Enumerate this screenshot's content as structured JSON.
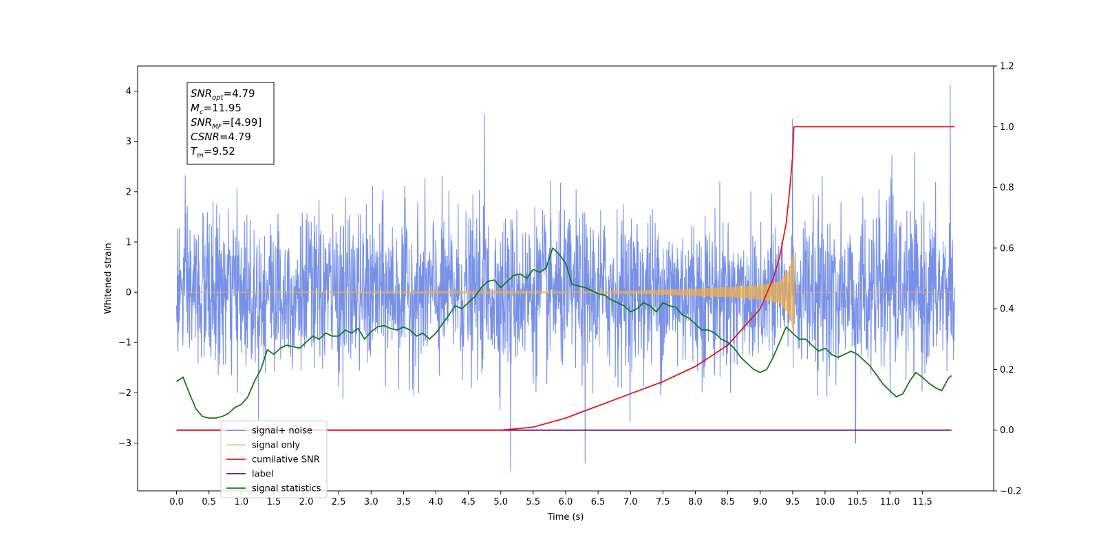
{
  "chart_data": {
    "type": "line",
    "xlabel": "Time (s)",
    "ylabel_left": "Whitened strain",
    "ylabel_right": "",
    "xlim": [
      -0.6,
      12.6
    ],
    "ylim_left": [
      -3.95,
      4.5
    ],
    "ylim_right": [
      -0.2,
      1.2
    ],
    "x_ticks": [
      0.0,
      0.5,
      1.0,
      1.5,
      2.0,
      2.5,
      3.0,
      3.5,
      4.0,
      4.5,
      5.0,
      5.5,
      6.0,
      6.5,
      7.0,
      7.5,
      8.0,
      8.5,
      9.0,
      9.5,
      10.0,
      10.5,
      11.0,
      11.5
    ],
    "x_tick_labels": [
      "0.0",
      "0.5",
      "1.0",
      "1.5",
      "2.0",
      "2.5",
      "3.0",
      "3.5",
      "4.0",
      "4.5",
      "5.0",
      "5.5",
      "6.0",
      "6.5",
      "7.0",
      "7.5",
      "8.0",
      "8.5",
      "9.0",
      "9.5",
      "10.0",
      "10.5",
      "11.0",
      "11.5"
    ],
    "y_ticks_left": [
      -3,
      -2,
      -1,
      0,
      1,
      2,
      3,
      4
    ],
    "y_tick_labels_left": [
      "−3",
      "−2",
      "−1",
      "0",
      "1",
      "2",
      "3",
      "4"
    ],
    "y_ticks_right": [
      -0.2,
      0.0,
      0.2,
      0.4,
      0.6,
      0.8,
      1.0,
      1.2
    ],
    "y_tick_labels_right": [
      "−0.2",
      "0.0",
      "0.2",
      "0.4",
      "0.6",
      "0.8",
      "1.0",
      "1.2"
    ],
    "grid": false,
    "legend_placement": "bottom-left",
    "series": [
      {
        "name": "signal+ noise",
        "axis": "left",
        "color": "#6b87e6",
        "kind": "noise",
        "x_range": [
          0.0,
          12.0
        ],
        "envelope": [
          -3.55,
          4.12
        ],
        "typical_range": [
          -2.0,
          2.3
        ],
        "notable_peaks": [
          [
            4.75,
            3.55
          ],
          [
            9.5,
            3.45
          ],
          [
            11.93,
            4.12
          ],
          [
            5.15,
            -3.55
          ],
          [
            6.3,
            -3.4
          ],
          [
            10.47,
            -3.0
          ]
        ]
      },
      {
        "name": "signal only",
        "axis": "left",
        "color": "#f5b041",
        "kind": "chirp",
        "x_range": [
          0.0,
          12.0
        ],
        "merger_time": 9.52,
        "amplitude_points": [
          [
            0.0,
            0.0
          ],
          [
            6.0,
            0.01
          ],
          [
            7.0,
            0.03
          ],
          [
            8.0,
            0.07
          ],
          [
            8.5,
            0.1
          ],
          [
            9.0,
            0.14
          ],
          [
            9.3,
            0.22
          ],
          [
            9.45,
            0.45
          ],
          [
            9.52,
            0.82
          ],
          [
            9.53,
            0.0
          ],
          [
            12.0,
            0.0
          ]
        ]
      },
      {
        "name": "cumilative SNR",
        "axis": "right",
        "color": "#e8141a",
        "x": [
          0.0,
          5.0,
          5.5,
          6.0,
          6.5,
          7.0,
          7.5,
          8.0,
          8.5,
          9.0,
          9.2,
          9.3,
          9.4,
          9.45,
          9.5,
          9.52,
          12.0
        ],
        "y": [
          0.0,
          0.0,
          0.01,
          0.04,
          0.08,
          0.12,
          0.16,
          0.21,
          0.28,
          0.4,
          0.5,
          0.57,
          0.68,
          0.78,
          0.9,
          1.0,
          1.0
        ]
      },
      {
        "name": "label",
        "axis": "right",
        "color": "#6b0a6b",
        "x": [
          0.0,
          11.95
        ],
        "y": [
          0.0,
          0.0
        ]
      },
      {
        "name": "signal statistics",
        "axis": "right",
        "color": "#107a10",
        "x": [
          0.0,
          0.1,
          0.2,
          0.3,
          0.4,
          0.5,
          0.6,
          0.7,
          0.8,
          0.9,
          1.0,
          1.1,
          1.2,
          1.3,
          1.4,
          1.5,
          1.6,
          1.7,
          1.8,
          1.9,
          2.0,
          2.1,
          2.2,
          2.3,
          2.4,
          2.5,
          2.6,
          2.7,
          2.8,
          2.9,
          3.0,
          3.1,
          3.2,
          3.3,
          3.4,
          3.5,
          3.6,
          3.7,
          3.8,
          3.9,
          4.0,
          4.1,
          4.2,
          4.3,
          4.4,
          4.5,
          4.6,
          4.7,
          4.8,
          4.9,
          5.0,
          5.1,
          5.2,
          5.3,
          5.4,
          5.5,
          5.6,
          5.7,
          5.8,
          5.9,
          6.0,
          6.1,
          6.2,
          6.3,
          6.4,
          6.5,
          6.6,
          6.7,
          6.8,
          6.9,
          7.0,
          7.1,
          7.2,
          7.3,
          7.4,
          7.5,
          7.6,
          7.7,
          7.8,
          7.9,
          8.0,
          8.1,
          8.2,
          8.3,
          8.4,
          8.5,
          8.6,
          8.7,
          8.8,
          8.9,
          9.0,
          9.1,
          9.2,
          9.3,
          9.4,
          9.5,
          9.6,
          9.7,
          9.8,
          9.9,
          10.0,
          10.1,
          10.2,
          10.3,
          10.4,
          10.5,
          10.6,
          10.7,
          10.8,
          10.9,
          11.0,
          11.1,
          11.2,
          11.3,
          11.4,
          11.5,
          11.6,
          11.7,
          11.8,
          11.9,
          11.95
        ],
        "y": [
          0.16,
          0.175,
          0.12,
          0.07,
          0.045,
          0.04,
          0.04,
          0.045,
          0.055,
          0.075,
          0.085,
          0.11,
          0.16,
          0.2,
          0.265,
          0.25,
          0.27,
          0.28,
          0.275,
          0.27,
          0.29,
          0.31,
          0.3,
          0.32,
          0.31,
          0.31,
          0.33,
          0.32,
          0.335,
          0.3,
          0.325,
          0.34,
          0.345,
          0.335,
          0.33,
          0.34,
          0.33,
          0.31,
          0.32,
          0.3,
          0.32,
          0.35,
          0.38,
          0.41,
          0.4,
          0.42,
          0.44,
          0.47,
          0.49,
          0.495,
          0.47,
          0.49,
          0.51,
          0.515,
          0.5,
          0.53,
          0.52,
          0.535,
          0.6,
          0.58,
          0.55,
          0.48,
          0.475,
          0.47,
          0.46,
          0.45,
          0.445,
          0.43,
          0.42,
          0.41,
          0.39,
          0.4,
          0.42,
          0.41,
          0.39,
          0.42,
          0.41,
          0.405,
          0.38,
          0.37,
          0.35,
          0.33,
          0.33,
          0.32,
          0.3,
          0.29,
          0.27,
          0.24,
          0.22,
          0.2,
          0.19,
          0.2,
          0.24,
          0.29,
          0.34,
          0.32,
          0.3,
          0.3,
          0.28,
          0.26,
          0.27,
          0.25,
          0.24,
          0.25,
          0.26,
          0.25,
          0.23,
          0.21,
          0.18,
          0.15,
          0.13,
          0.11,
          0.12,
          0.16,
          0.19,
          0.175,
          0.155,
          0.14,
          0.13,
          0.17,
          0.18
        ]
      }
    ],
    "legend": [
      {
        "label": "signal+ noise",
        "color": "#6b87e6",
        "alpha": 0.9
      },
      {
        "label": "signal only",
        "color": "#f5b041",
        "alpha": 0.7
      },
      {
        "label": "cumilative SNR",
        "color": "#e8141a",
        "alpha": 1.0
      },
      {
        "label": "label",
        "color": "#6b0a6b",
        "alpha": 1.0
      },
      {
        "label": "signal statistics",
        "color": "#107a10",
        "alpha": 1.0
      }
    ],
    "info_box": {
      "lines": [
        {
          "main": "SNR",
          "sub": "opt",
          "value": "=4.79"
        },
        {
          "main": "M",
          "sub": "c",
          "value": "=11.95"
        },
        {
          "main": "SNR",
          "sub": "MF",
          "value": "=[4.99]"
        },
        {
          "main": "CSNR",
          "sub": "",
          "value": "=4.79"
        },
        {
          "main": "T",
          "sub": "m",
          "value": "=9.52"
        }
      ]
    }
  }
}
